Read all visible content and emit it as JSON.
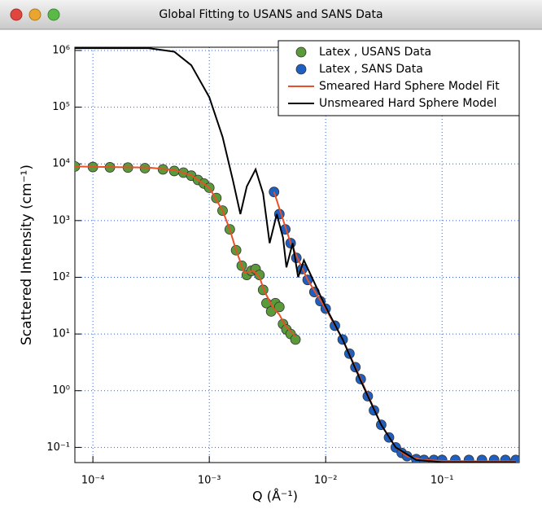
{
  "chart_data": {
    "type": "scatter",
    "title": "Global Fitting to USANS and SANS Data",
    "xlabel": "Q (Å⁻¹)",
    "ylabel": "Scattered Intensity (cm⁻¹)",
    "log_x": true,
    "log_y": true,
    "grid": true,
    "legend": "top-right",
    "xlim": [
      7e-05,
      0.46
    ],
    "ylim": [
      0.054,
      1140000
    ],
    "xticks": [
      {
        "value": 0.0001,
        "label": "10⁻⁴"
      },
      {
        "value": 0.001,
        "label": "10⁻³"
      },
      {
        "value": 0.01,
        "label": "10⁻²"
      },
      {
        "value": 0.1,
        "label": "10⁻¹"
      }
    ],
    "yticks": [
      {
        "value": 0.1,
        "label": "10⁻¹"
      },
      {
        "value": 1,
        "label": "10⁰"
      },
      {
        "value": 10,
        "label": "10¹"
      },
      {
        "value": 100,
        "label": "10²"
      },
      {
        "value": 1000,
        "label": "10³"
      },
      {
        "value": 10000,
        "label": "10⁴"
      },
      {
        "value": 100000,
        "label": "10⁵"
      },
      {
        "value": 1000000,
        "label": "10⁶"
      }
    ],
    "series": [
      {
        "name": "Latex , USANS Data",
        "type": "scatter",
        "color": "#5a9a3a",
        "x": [
          7e-05,
          0.0001,
          0.00014,
          0.0002,
          0.00028,
          0.0004,
          0.0005,
          0.0006,
          0.0007,
          0.0008,
          0.0009,
          0.001,
          0.00115,
          0.0013,
          0.0015,
          0.0017,
          0.0019,
          0.0021,
          0.0023,
          0.0025,
          0.0027,
          0.0029,
          0.0031,
          0.0034,
          0.0037,
          0.004,
          0.0043,
          0.0046,
          0.005,
          0.0055
        ],
        "values": [
          9000,
          8800,
          8700,
          8600,
          8400,
          8000,
          7500,
          7000,
          6200,
          5200,
          4500,
          3800,
          2500,
          1500,
          700,
          300,
          160,
          110,
          130,
          140,
          110,
          60,
          35,
          25,
          35,
          30,
          15,
          12,
          10,
          8
        ]
      },
      {
        "name": "Latex , SANS Data",
        "type": "scatter",
        "color": "#1f5fbf",
        "x": [
          0.0036,
          0.004,
          0.0045,
          0.005,
          0.0056,
          0.0063,
          0.007,
          0.008,
          0.009,
          0.01,
          0.012,
          0.014,
          0.016,
          0.018,
          0.02,
          0.023,
          0.026,
          0.03,
          0.035,
          0.04,
          0.045,
          0.05,
          0.06,
          0.07,
          0.085,
          0.1,
          0.13,
          0.17,
          0.22,
          0.28,
          0.35,
          0.43
        ],
        "values": [
          3200,
          1300,
          700,
          400,
          220,
          140,
          90,
          55,
          38,
          28,
          14,
          8,
          4.5,
          2.6,
          1.6,
          0.8,
          0.45,
          0.25,
          0.15,
          0.1,
          0.08,
          0.07,
          0.062,
          0.06,
          0.06,
          0.06,
          0.06,
          0.06,
          0.06,
          0.06,
          0.06,
          0.06
        ]
      },
      {
        "name": "Smeared Hard Sphere Model Fit",
        "type": "line",
        "color": "#e8502a",
        "x": [
          7e-05,
          0.0003,
          0.0005,
          0.0007,
          0.001,
          0.0013,
          0.0015,
          0.0017,
          0.002,
          0.0024,
          0.0027,
          0.003,
          0.0035,
          0.004,
          0.0045,
          0.0055,
          0.0056,
          0.0036,
          0.005,
          0.007,
          0.01,
          0.014,
          0.02,
          0.03,
          0.04,
          0.05,
          0.07,
          0.1,
          0.2,
          0.43
        ],
        "values": [
          9000,
          8600,
          7800,
          6300,
          3800,
          1500,
          700,
          300,
          120,
          130,
          100,
          55,
          30,
          22,
          14,
          9,
          null,
          3200,
          400,
          90,
          28,
          8,
          1.6,
          0.25,
          0.1,
          0.07,
          0.06,
          0.058,
          0.057,
          0.057
        ]
      },
      {
        "name": "Unsmeared Hard Sphere Model",
        "type": "line",
        "color": "#000000",
        "x": [
          7e-05,
          0.0003,
          0.0005,
          0.0007,
          0.001,
          0.0013,
          0.0016,
          0.00185,
          0.0021,
          0.0025,
          0.0029,
          0.0033,
          0.0038,
          0.0043,
          0.0046,
          0.0052,
          0.0058,
          0.0065,
          0.008,
          0.01,
          0.014,
          0.02,
          0.03,
          0.04,
          0.06,
          0.1,
          0.2,
          0.43
        ],
        "values": [
          1100000,
          1100000,
          950000,
          550000,
          150000,
          30000,
          5000,
          1300,
          4000,
          8000,
          3000,
          400,
          1300,
          500,
          150,
          400,
          100,
          200,
          80,
          30,
          8,
          1.5,
          0.25,
          0.1,
          0.06,
          0.055,
          0.055,
          0.055
        ]
      }
    ]
  }
}
